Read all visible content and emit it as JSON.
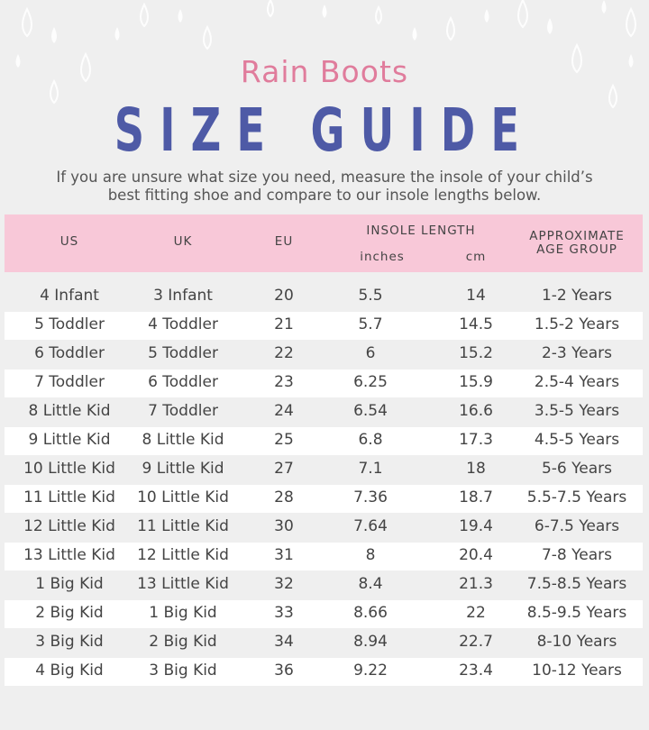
{
  "header": {
    "subtitle": "Rain Boots",
    "title": "SIZE GUIDE",
    "description_lines": [
      "If you are unsure what size you need, measure the insole of your child’s",
      "best fitting shoe and compare to our insole lengths below."
    ]
  },
  "table": {
    "headers": {
      "us": "US",
      "uk": "UK",
      "eu": "EU",
      "insole": "INSOLE LENGTH",
      "inches": "inches",
      "cm": "cm",
      "age": "APPROXIMATE AGE GROUP"
    },
    "rows": [
      [
        "4 Infant",
        "3 Infant",
        "20",
        "5.5",
        "14",
        "1-2 Years"
      ],
      [
        "5 Toddler",
        "4 Toddler",
        "21",
        "5.7",
        "14.5",
        "1.5-2 Years"
      ],
      [
        "6 Toddler",
        "5 Toddler",
        "22",
        "6",
        "15.2",
        "2-3 Years"
      ],
      [
        "7 Toddler",
        "6 Toddler",
        "23",
        "6.25",
        "15.9",
        "2.5-4 Years"
      ],
      [
        "8 Little Kid",
        "7 Toddler",
        "24",
        "6.54",
        "16.6",
        "3.5-5 Years"
      ],
      [
        "9 Little Kid",
        "8 Little Kid",
        "25",
        "6.8",
        "17.3",
        "4.5-5 Years"
      ],
      [
        "10 Little Kid",
        "9 Little Kid",
        "27",
        "7.1",
        "18",
        "5-6 Years"
      ],
      [
        "11 Little Kid",
        "10 Little Kid",
        "28",
        "7.36",
        "18.7",
        "5.5-7.5 Years"
      ],
      [
        "12 Little Kid",
        "11 Little Kid",
        "30",
        "7.64",
        "19.4",
        "6-7.5 Years"
      ],
      [
        "13 Little Kid",
        "12 Little Kid",
        "31",
        "8",
        "20.4",
        "7-8 Years"
      ],
      [
        "1 Big Kid",
        "13 Little Kid",
        "32",
        "8.4",
        "21.3",
        "7.5-8.5 Years"
      ],
      [
        "2 Big Kid",
        "1 Big Kid",
        "33",
        "8.66",
        "22",
        "8.5-9.5 Years"
      ],
      [
        "3 Big Kid",
        "2 Big Kid",
        "34",
        "8.94",
        "22.7",
        "8-10 Years"
      ],
      [
        "4 Big Kid",
        "3 Big Kid",
        "36",
        "9.22",
        "23.4",
        "10-12 Years"
      ]
    ]
  }
}
